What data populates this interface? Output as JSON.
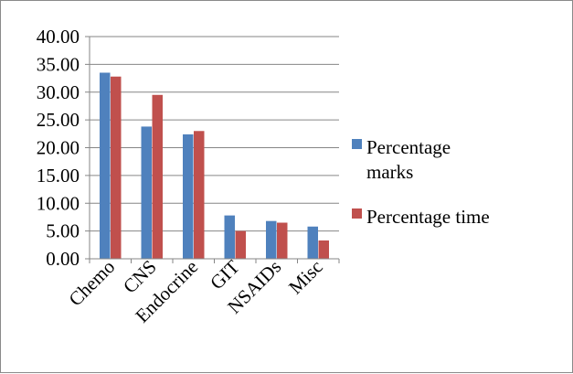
{
  "chart_data": {
    "type": "bar",
    "title": "",
    "xlabel": "",
    "ylabel": "",
    "categories": [
      "Chemo",
      "CNS",
      "Endocrine",
      "GIT",
      "NSAIDs",
      "Misc"
    ],
    "series": [
      {
        "name": "Percentage marks",
        "legend_lines": [
          "Percentage",
          "marks"
        ],
        "color": "#4f81bd",
        "values": [
          33.5,
          23.8,
          22.4,
          7.8,
          6.8,
          5.8
        ]
      },
      {
        "name": "Percentage time",
        "legend_lines": [
          "Percentage time"
        ],
        "color": "#c0504d",
        "values": [
          32.8,
          29.5,
          23.0,
          5.0,
          6.5,
          3.3
        ]
      }
    ],
    "ylim": [
      0,
      40
    ],
    "yticks": [
      "0.00",
      "5.00",
      "10.00",
      "15.00",
      "20.00",
      "25.00",
      "30.00",
      "35.00",
      "40.00"
    ],
    "grid": true,
    "legend_position": "right"
  }
}
